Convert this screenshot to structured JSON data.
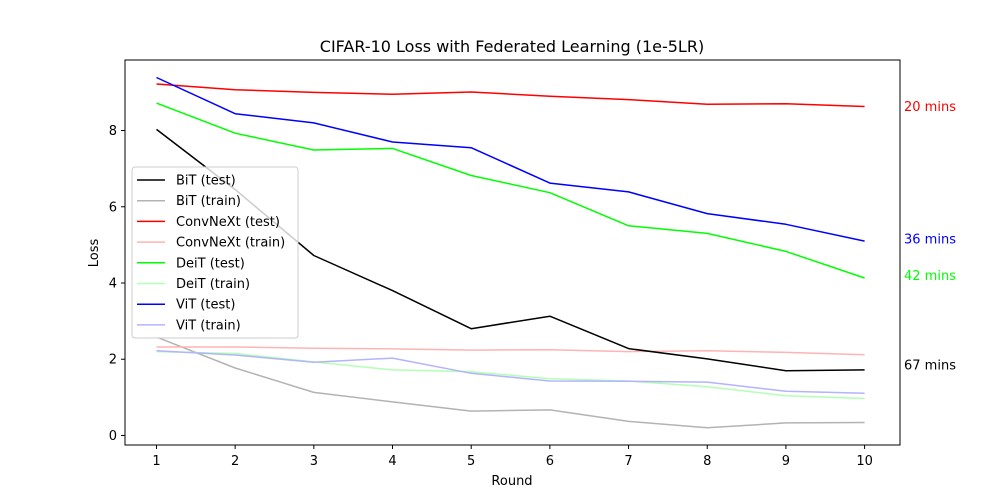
{
  "chart_data": {
    "type": "line",
    "title": "CIFAR-10 Loss with Federated Learning (1e-5LR)",
    "xlabel": "Round",
    "ylabel": "Loss",
    "xlim": [
      0.6,
      10.45
    ],
    "ylim": [
      -0.25,
      9.85
    ],
    "x": [
      1,
      2,
      3,
      4,
      5,
      6,
      7,
      8,
      9,
      10
    ],
    "xticks": [
      "1",
      "2",
      "3",
      "4",
      "5",
      "6",
      "7",
      "8",
      "9",
      "10"
    ],
    "yticks": [
      "0",
      "2",
      "4",
      "6",
      "8"
    ],
    "grid": false,
    "legend_position": "center-left",
    "series": [
      {
        "name": "BiT (test)",
        "color": "#000000",
        "values": [
          8.03,
          6.45,
          4.72,
          3.8,
          2.8,
          3.13,
          2.28,
          2.01,
          1.7,
          1.72
        ]
      },
      {
        "name": "BiT (train)",
        "color": "#b3b3b3",
        "values": [
          2.58,
          1.77,
          1.13,
          0.88,
          0.64,
          0.67,
          0.37,
          0.2,
          0.33,
          0.34
        ]
      },
      {
        "name": "ConvNeXt (test)",
        "color": "#ff0000",
        "values": [
          9.22,
          9.07,
          9.0,
          8.95,
          9.01,
          8.9,
          8.81,
          8.69,
          8.7,
          8.63
        ]
      },
      {
        "name": "ConvNeXt (train)",
        "color": "#ffb3b3",
        "values": [
          2.32,
          2.32,
          2.29,
          2.27,
          2.24,
          2.25,
          2.2,
          2.22,
          2.18,
          2.12
        ]
      },
      {
        "name": "DeiT (test)",
        "color": "#00ff00",
        "values": [
          8.72,
          7.93,
          7.49,
          7.53,
          6.82,
          6.37,
          5.5,
          5.3,
          4.83,
          4.13
        ]
      },
      {
        "name": "DeiT (train)",
        "color": "#b3ffb3",
        "values": [
          2.2,
          2.15,
          1.93,
          1.72,
          1.67,
          1.49,
          1.43,
          1.28,
          1.04,
          0.97
        ]
      },
      {
        "name": "ViT (test)",
        "color": "#0000ff",
        "values": [
          9.39,
          8.44,
          8.2,
          7.7,
          7.55,
          6.62,
          6.39,
          5.82,
          5.54,
          5.1
        ]
      },
      {
        "name": "ViT (train)",
        "color": "#b3b3ff",
        "values": [
          2.22,
          2.11,
          1.92,
          2.03,
          1.63,
          1.43,
          1.42,
          1.4,
          1.16,
          1.11
        ]
      }
    ],
    "annotations": [
      {
        "text": "20 mins",
        "color": "#ff0000",
        "y": 8.63
      },
      {
        "text": "36 mins",
        "color": "#0000ff",
        "y": 5.16
      },
      {
        "text": "42 mins",
        "color": "#00ff00",
        "y": 4.2
      },
      {
        "text": "67 mins",
        "color": "#000000",
        "y": 1.85
      }
    ]
  }
}
